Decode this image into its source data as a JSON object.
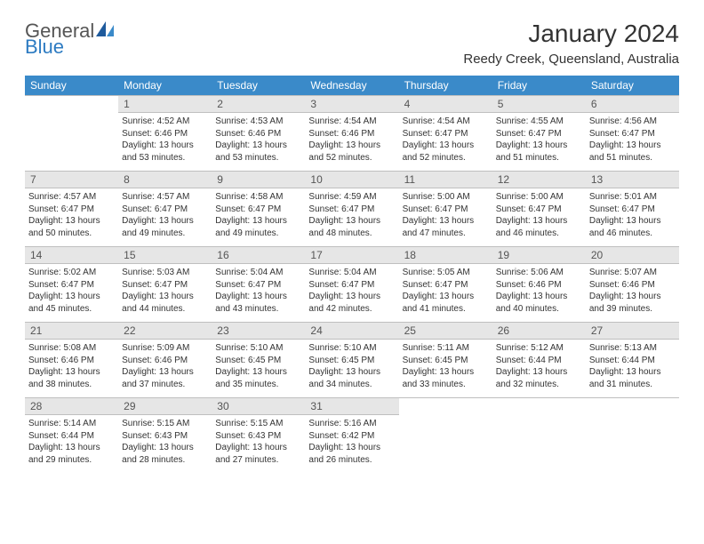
{
  "logo": {
    "text1": "General",
    "text2": "Blue"
  },
  "title": "January 2024",
  "location": "Reedy Creek, Queensland, Australia",
  "header_bg": "#3a8ac9",
  "days_of_week": [
    "Sunday",
    "Monday",
    "Tuesday",
    "Wednesday",
    "Thursday",
    "Friday",
    "Saturday"
  ],
  "weeks": [
    {
      "nums": [
        "",
        "1",
        "2",
        "3",
        "4",
        "5",
        "6"
      ],
      "cells": [
        null,
        {
          "sunrise": "Sunrise: 4:52 AM",
          "sunset": "Sunset: 6:46 PM",
          "day1": "Daylight: 13 hours",
          "day2": "and 53 minutes."
        },
        {
          "sunrise": "Sunrise: 4:53 AM",
          "sunset": "Sunset: 6:46 PM",
          "day1": "Daylight: 13 hours",
          "day2": "and 53 minutes."
        },
        {
          "sunrise": "Sunrise: 4:54 AM",
          "sunset": "Sunset: 6:46 PM",
          "day1": "Daylight: 13 hours",
          "day2": "and 52 minutes."
        },
        {
          "sunrise": "Sunrise: 4:54 AM",
          "sunset": "Sunset: 6:47 PM",
          "day1": "Daylight: 13 hours",
          "day2": "and 52 minutes."
        },
        {
          "sunrise": "Sunrise: 4:55 AM",
          "sunset": "Sunset: 6:47 PM",
          "day1": "Daylight: 13 hours",
          "day2": "and 51 minutes."
        },
        {
          "sunrise": "Sunrise: 4:56 AM",
          "sunset": "Sunset: 6:47 PM",
          "day1": "Daylight: 13 hours",
          "day2": "and 51 minutes."
        }
      ]
    },
    {
      "nums": [
        "7",
        "8",
        "9",
        "10",
        "11",
        "12",
        "13"
      ],
      "cells": [
        {
          "sunrise": "Sunrise: 4:57 AM",
          "sunset": "Sunset: 6:47 PM",
          "day1": "Daylight: 13 hours",
          "day2": "and 50 minutes."
        },
        {
          "sunrise": "Sunrise: 4:57 AM",
          "sunset": "Sunset: 6:47 PM",
          "day1": "Daylight: 13 hours",
          "day2": "and 49 minutes."
        },
        {
          "sunrise": "Sunrise: 4:58 AM",
          "sunset": "Sunset: 6:47 PM",
          "day1": "Daylight: 13 hours",
          "day2": "and 49 minutes."
        },
        {
          "sunrise": "Sunrise: 4:59 AM",
          "sunset": "Sunset: 6:47 PM",
          "day1": "Daylight: 13 hours",
          "day2": "and 48 minutes."
        },
        {
          "sunrise": "Sunrise: 5:00 AM",
          "sunset": "Sunset: 6:47 PM",
          "day1": "Daylight: 13 hours",
          "day2": "and 47 minutes."
        },
        {
          "sunrise": "Sunrise: 5:00 AM",
          "sunset": "Sunset: 6:47 PM",
          "day1": "Daylight: 13 hours",
          "day2": "and 46 minutes."
        },
        {
          "sunrise": "Sunrise: 5:01 AM",
          "sunset": "Sunset: 6:47 PM",
          "day1": "Daylight: 13 hours",
          "day2": "and 46 minutes."
        }
      ]
    },
    {
      "nums": [
        "14",
        "15",
        "16",
        "17",
        "18",
        "19",
        "20"
      ],
      "cells": [
        {
          "sunrise": "Sunrise: 5:02 AM",
          "sunset": "Sunset: 6:47 PM",
          "day1": "Daylight: 13 hours",
          "day2": "and 45 minutes."
        },
        {
          "sunrise": "Sunrise: 5:03 AM",
          "sunset": "Sunset: 6:47 PM",
          "day1": "Daylight: 13 hours",
          "day2": "and 44 minutes."
        },
        {
          "sunrise": "Sunrise: 5:04 AM",
          "sunset": "Sunset: 6:47 PM",
          "day1": "Daylight: 13 hours",
          "day2": "and 43 minutes."
        },
        {
          "sunrise": "Sunrise: 5:04 AM",
          "sunset": "Sunset: 6:47 PM",
          "day1": "Daylight: 13 hours",
          "day2": "and 42 minutes."
        },
        {
          "sunrise": "Sunrise: 5:05 AM",
          "sunset": "Sunset: 6:47 PM",
          "day1": "Daylight: 13 hours",
          "day2": "and 41 minutes."
        },
        {
          "sunrise": "Sunrise: 5:06 AM",
          "sunset": "Sunset: 6:46 PM",
          "day1": "Daylight: 13 hours",
          "day2": "and 40 minutes."
        },
        {
          "sunrise": "Sunrise: 5:07 AM",
          "sunset": "Sunset: 6:46 PM",
          "day1": "Daylight: 13 hours",
          "day2": "and 39 minutes."
        }
      ]
    },
    {
      "nums": [
        "21",
        "22",
        "23",
        "24",
        "25",
        "26",
        "27"
      ],
      "cells": [
        {
          "sunrise": "Sunrise: 5:08 AM",
          "sunset": "Sunset: 6:46 PM",
          "day1": "Daylight: 13 hours",
          "day2": "and 38 minutes."
        },
        {
          "sunrise": "Sunrise: 5:09 AM",
          "sunset": "Sunset: 6:46 PM",
          "day1": "Daylight: 13 hours",
          "day2": "and 37 minutes."
        },
        {
          "sunrise": "Sunrise: 5:10 AM",
          "sunset": "Sunset: 6:45 PM",
          "day1": "Daylight: 13 hours",
          "day2": "and 35 minutes."
        },
        {
          "sunrise": "Sunrise: 5:10 AM",
          "sunset": "Sunset: 6:45 PM",
          "day1": "Daylight: 13 hours",
          "day2": "and 34 minutes."
        },
        {
          "sunrise": "Sunrise: 5:11 AM",
          "sunset": "Sunset: 6:45 PM",
          "day1": "Daylight: 13 hours",
          "day2": "and 33 minutes."
        },
        {
          "sunrise": "Sunrise: 5:12 AM",
          "sunset": "Sunset: 6:44 PM",
          "day1": "Daylight: 13 hours",
          "day2": "and 32 minutes."
        },
        {
          "sunrise": "Sunrise: 5:13 AM",
          "sunset": "Sunset: 6:44 PM",
          "day1": "Daylight: 13 hours",
          "day2": "and 31 minutes."
        }
      ]
    },
    {
      "nums": [
        "28",
        "29",
        "30",
        "31",
        "",
        "",
        ""
      ],
      "cells": [
        {
          "sunrise": "Sunrise: 5:14 AM",
          "sunset": "Sunset: 6:44 PM",
          "day1": "Daylight: 13 hours",
          "day2": "and 29 minutes."
        },
        {
          "sunrise": "Sunrise: 5:15 AM",
          "sunset": "Sunset: 6:43 PM",
          "day1": "Daylight: 13 hours",
          "day2": "and 28 minutes."
        },
        {
          "sunrise": "Sunrise: 5:15 AM",
          "sunset": "Sunset: 6:43 PM",
          "day1": "Daylight: 13 hours",
          "day2": "and 27 minutes."
        },
        {
          "sunrise": "Sunrise: 5:16 AM",
          "sunset": "Sunset: 6:42 PM",
          "day1": "Daylight: 13 hours",
          "day2": "and 26 minutes."
        },
        null,
        null,
        null
      ]
    }
  ]
}
